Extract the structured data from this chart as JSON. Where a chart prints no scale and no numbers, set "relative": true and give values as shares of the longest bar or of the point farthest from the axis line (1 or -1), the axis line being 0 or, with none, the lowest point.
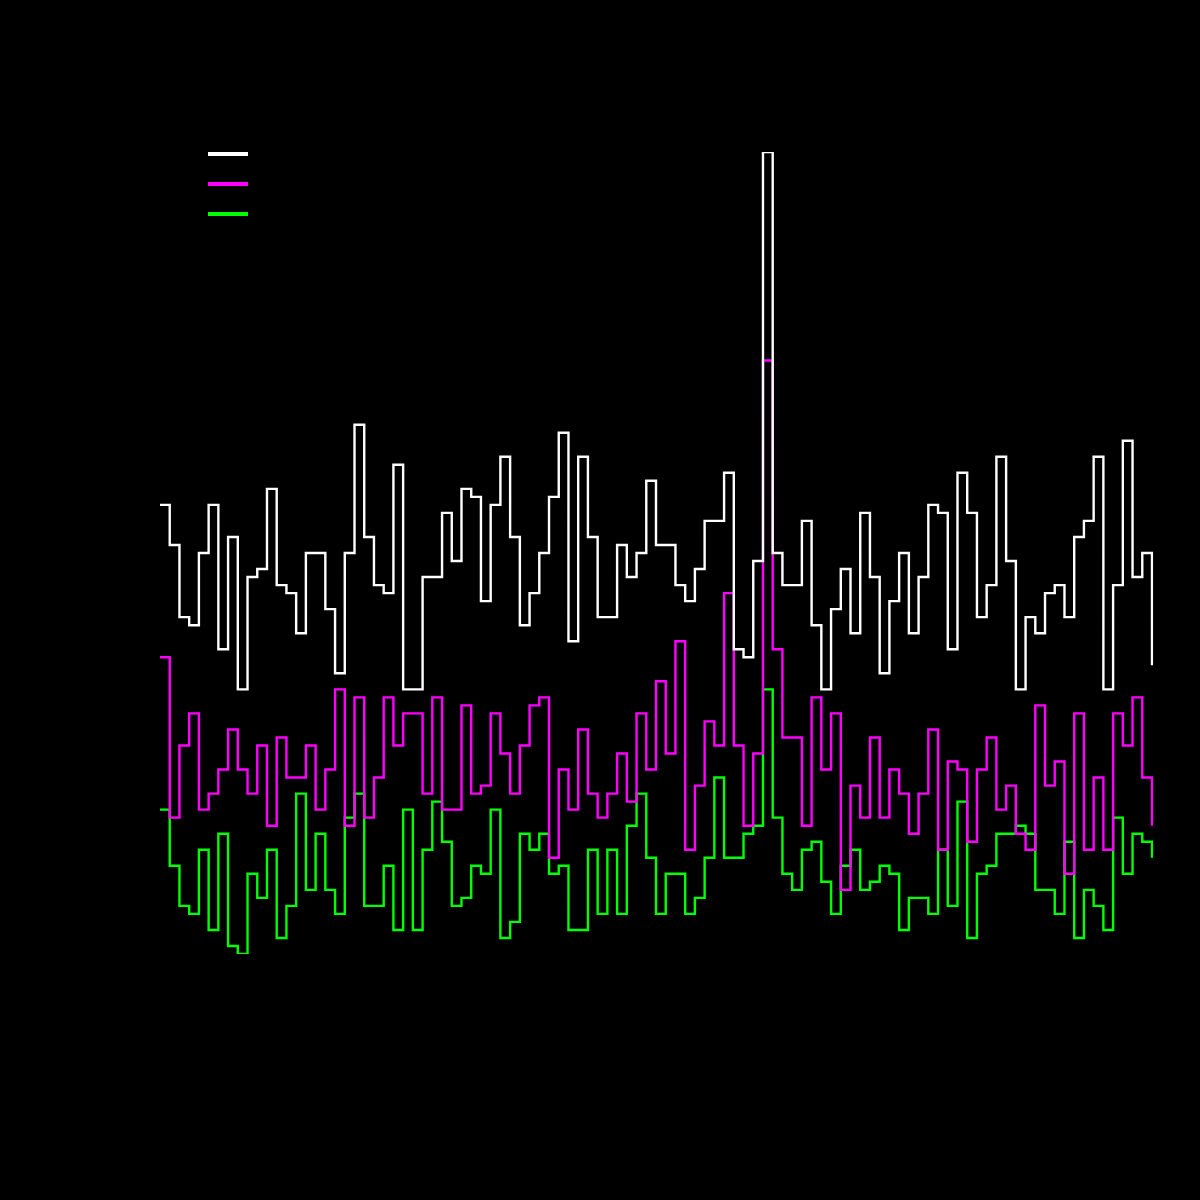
{
  "chart_data": {
    "type": "step",
    "relative": true,
    "categories": [
      null,
      null,
      null,
      null,
      null,
      null,
      null,
      null,
      null,
      null,
      null,
      null,
      null,
      null,
      null,
      null,
      null,
      null,
      null,
      null,
      null,
      null,
      null,
      null,
      null,
      null,
      null,
      null,
      null,
      null,
      null,
      null,
      null,
      null,
      null,
      null,
      null,
      null,
      null,
      null,
      null,
      null,
      null,
      null,
      null,
      null,
      null,
      null,
      null,
      null,
      null,
      null,
      null,
      null,
      null,
      null,
      null,
      null,
      null,
      null,
      null,
      null,
      null,
      null,
      null,
      null,
      null,
      null,
      null,
      null,
      null,
      null,
      null,
      null,
      null,
      null,
      null,
      null,
      null,
      null,
      null,
      null,
      null,
      null,
      null,
      null,
      null,
      null,
      null,
      null,
      null,
      null,
      null,
      null,
      null,
      null,
      null,
      null,
      null,
      null,
      null,
      null,
      null
    ],
    "series": [
      {
        "color": "#ffffff",
        "values": [
          0.56,
          0.51,
          0.42,
          0.41,
          0.5,
          0.56,
          0.38,
          0.52,
          0.33,
          0.47,
          0.48,
          0.58,
          0.46,
          0.45,
          0.4,
          0.5,
          0.5,
          0.43,
          0.35,
          0.5,
          0.66,
          0.52,
          0.46,
          0.45,
          0.61,
          0.33,
          0.33,
          0.47,
          0.47,
          0.55,
          0.49,
          0.58,
          0.57,
          0.44,
          0.56,
          0.62,
          0.52,
          0.41,
          0.45,
          0.5,
          0.57,
          0.65,
          0.39,
          0.62,
          0.52,
          0.42,
          0.42,
          0.51,
          0.47,
          0.5,
          0.59,
          0.51,
          0.51,
          0.46,
          0.44,
          0.48,
          0.54,
          0.54,
          0.6,
          0.38,
          0.37,
          0.49,
          1.0,
          0.5,
          0.46,
          0.46,
          0.54,
          0.41,
          0.33,
          0.43,
          0.48,
          0.4,
          0.55,
          0.47,
          0.35,
          0.44,
          0.5,
          0.4,
          0.47,
          0.56,
          0.55,
          0.38,
          0.6,
          0.55,
          0.42,
          0.46,
          0.62,
          0.49,
          0.33,
          0.42,
          0.4,
          0.45,
          0.46,
          0.42,
          0.52,
          0.54,
          0.62,
          0.33,
          0.46,
          0.64,
          0.47,
          0.5,
          0.36
        ]
      },
      {
        "color": "#ff00ff",
        "values": [
          0.37,
          0.17,
          0.26,
          0.3,
          0.18,
          0.2,
          0.23,
          0.28,
          0.23,
          0.2,
          0.26,
          0.16,
          0.27,
          0.22,
          0.22,
          0.26,
          0.18,
          0.23,
          0.33,
          0.16,
          0.32,
          0.17,
          0.22,
          0.32,
          0.26,
          0.3,
          0.3,
          0.2,
          0.32,
          0.18,
          0.18,
          0.31,
          0.2,
          0.21,
          0.3,
          0.25,
          0.2,
          0.26,
          0.31,
          0.32,
          0.12,
          0.23,
          0.18,
          0.28,
          0.2,
          0.17,
          0.2,
          0.25,
          0.19,
          0.3,
          0.23,
          0.34,
          0.25,
          0.39,
          0.13,
          0.21,
          0.29,
          0.26,
          0.45,
          0.26,
          0.16,
          0.25,
          0.74,
          0.38,
          0.27,
          0.27,
          0.16,
          0.32,
          0.23,
          0.3,
          0.08,
          0.21,
          0.17,
          0.27,
          0.17,
          0.23,
          0.2,
          0.15,
          0.2,
          0.28,
          0.13,
          0.24,
          0.23,
          0.14,
          0.23,
          0.27,
          0.18,
          0.21,
          0.15,
          0.13,
          0.31,
          0.21,
          0.24,
          0.1,
          0.3,
          0.13,
          0.22,
          0.13,
          0.3,
          0.26,
          0.32,
          0.22,
          0.16
        ]
      },
      {
        "color": "#00ff00",
        "values": [
          0.18,
          0.11,
          0.06,
          0.05,
          0.13,
          0.03,
          0.15,
          0.01,
          0.0,
          0.1,
          0.07,
          0.13,
          0.02,
          0.06,
          0.2,
          0.08,
          0.15,
          0.08,
          0.05,
          0.17,
          0.2,
          0.06,
          0.06,
          0.11,
          0.03,
          0.18,
          0.03,
          0.13,
          0.19,
          0.14,
          0.06,
          0.07,
          0.11,
          0.1,
          0.18,
          0.02,
          0.04,
          0.15,
          0.13,
          0.15,
          0.1,
          0.11,
          0.03,
          0.03,
          0.13,
          0.05,
          0.13,
          0.05,
          0.16,
          0.2,
          0.12,
          0.05,
          0.1,
          0.1,
          0.05,
          0.07,
          0.12,
          0.22,
          0.12,
          0.12,
          0.15,
          0.16,
          0.33,
          0.17,
          0.1,
          0.08,
          0.13,
          0.14,
          0.09,
          0.05,
          0.11,
          0.13,
          0.08,
          0.09,
          0.11,
          0.1,
          0.03,
          0.07,
          0.07,
          0.05,
          0.13,
          0.06,
          0.19,
          0.02,
          0.1,
          0.11,
          0.15,
          0.15,
          0.16,
          0.15,
          0.08,
          0.08,
          0.05,
          0.14,
          0.02,
          0.08,
          0.06,
          0.03,
          0.17,
          0.1,
          0.15,
          0.14,
          0.12
        ]
      }
    ]
  }
}
